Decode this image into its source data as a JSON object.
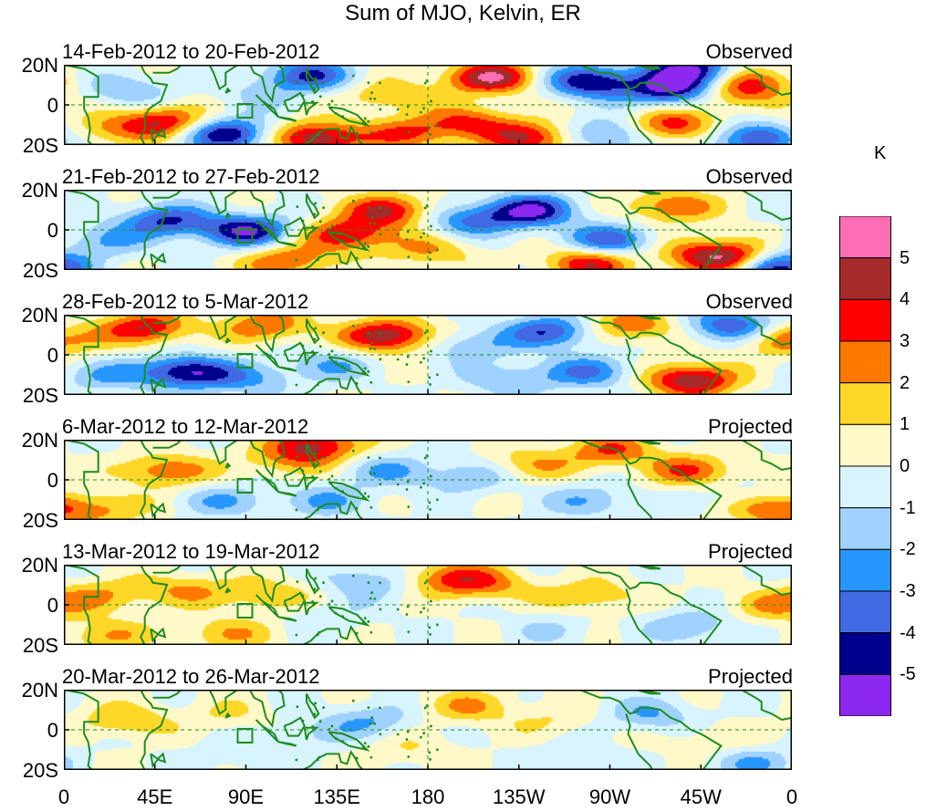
{
  "title": "Sum of MJO, Kelvin, ER",
  "panels": [
    {
      "date_range": "14-Feb-2012 to 20-Feb-2012",
      "status": "Observed"
    },
    {
      "date_range": "21-Feb-2012 to 27-Feb-2012",
      "status": "Observed"
    },
    {
      "date_range": "28-Feb-2012 to 5-Mar-2012",
      "status": "Observed"
    },
    {
      "date_range": "6-Mar-2012 to 12-Mar-2012",
      "status": "Projected"
    },
    {
      "date_range": "13-Mar-2012 to 19-Mar-2012",
      "status": "Projected"
    },
    {
      "date_range": "20-Mar-2012 to 26-Mar-2012",
      "status": "Projected"
    }
  ],
  "lat_labels": [
    "20N",
    "0",
    "20S"
  ],
  "lon_labels": [
    "0",
    "45E",
    "90E",
    "135E",
    "180",
    "135W",
    "90W",
    "45W",
    "0"
  ],
  "colorbar": {
    "unit": "K",
    "labels": [
      "5",
      "4",
      "3",
      "2",
      "1",
      "0",
      "-1",
      "-2",
      "-3",
      "-4",
      "-5"
    ],
    "colors": [
      "#ff6eb4",
      "#a52a2a",
      "#ff0000",
      "#ff7800",
      "#ffd728",
      "#fff8c8",
      "#d8f4ff",
      "#a0d2ff",
      "#2896ff",
      "#4169e1",
      "#00008c",
      "#8c28f0"
    ]
  },
  "chart_data": {
    "type": "heatmap",
    "title": "Sum of MJO, Kelvin, ER",
    "variable_unit": "K",
    "levels": [
      -5,
      -4,
      -3,
      -2,
      -1,
      0,
      1,
      2,
      3,
      4,
      5
    ],
    "lon_range": [
      0,
      360
    ],
    "lat_range": [
      -20,
      20
    ],
    "panel_scale": [
      5,
      5,
      4.5,
      3,
      2.8,
      2.4
    ],
    "blobs": [
      [
        [
          210,
          14,
          5
        ],
        [
          310,
          18,
          -5
        ],
        [
          340,
          12,
          3
        ],
        [
          120,
          15,
          -4
        ],
        [
          260,
          12,
          -5
        ],
        [
          300,
          8,
          -5
        ],
        [
          330,
          5,
          2
        ],
        [
          200,
          -8,
          3
        ],
        [
          170,
          -14,
          3
        ],
        [
          125,
          -16,
          5
        ],
        [
          80,
          -14,
          -5
        ],
        [
          50,
          -8,
          4
        ],
        [
          20,
          -12,
          2
        ],
        [
          300,
          -10,
          4
        ],
        [
          340,
          -16,
          -4
        ],
        [
          230,
          -16,
          4
        ],
        [
          160,
          5,
          2
        ],
        [
          270,
          -14,
          -3
        ],
        [
          30,
          8,
          -2
        ],
        [
          95,
          5,
          -1
        ]
      ],
      [
        [
          90,
          0,
          -5
        ],
        [
          50,
          5,
          -4
        ],
        [
          160,
          10,
          4
        ],
        [
          140,
          -2,
          4
        ],
        [
          230,
          10,
          -5
        ],
        [
          270,
          -5,
          -4
        ],
        [
          300,
          12,
          3
        ],
        [
          330,
          -14,
          5
        ],
        [
          350,
          -18,
          -5
        ],
        [
          260,
          -16,
          4
        ],
        [
          200,
          5,
          -3
        ],
        [
          20,
          -5,
          -2
        ],
        [
          110,
          -15,
          3
        ],
        [
          310,
          -10,
          2
        ],
        [
          180,
          -10,
          2
        ]
      ],
      [
        [
          40,
          14,
          4
        ],
        [
          100,
          15,
          3
        ],
        [
          160,
          10,
          5
        ],
        [
          60,
          -8,
          -5
        ],
        [
          90,
          -12,
          -2
        ],
        [
          130,
          -5,
          -2
        ],
        [
          200,
          5,
          -2
        ],
        [
          240,
          12,
          -4
        ],
        [
          280,
          15,
          3
        ],
        [
          330,
          15,
          -4
        ],
        [
          355,
          8,
          3
        ],
        [
          310,
          -12,
          5
        ],
        [
          260,
          -8,
          -3
        ],
        [
          20,
          -10,
          -2
        ],
        [
          220,
          -12,
          -2
        ]
      ],
      [
        [
          50,
          5,
          3
        ],
        [
          110,
          10,
          2
        ],
        [
          125,
          18,
          4
        ],
        [
          160,
          5,
          -2
        ],
        [
          200,
          2,
          -2
        ],
        [
          230,
          8,
          2
        ],
        [
          270,
          15,
          3
        ],
        [
          310,
          5,
          3
        ],
        [
          80,
          -10,
          -2
        ],
        [
          130,
          -10,
          -2
        ],
        [
          20,
          -14,
          2
        ],
        [
          350,
          -14,
          3
        ],
        [
          260,
          -10,
          -2
        ],
        [
          330,
          -8,
          -1
        ]
      ],
      [
        [
          20,
          5,
          2
        ],
        [
          60,
          8,
          2
        ],
        [
          100,
          5,
          2
        ],
        [
          150,
          12,
          -2
        ],
        [
          190,
          14,
          3
        ],
        [
          210,
          10,
          2
        ],
        [
          80,
          -14,
          2
        ],
        [
          130,
          -5,
          -1
        ],
        [
          260,
          5,
          2
        ],
        [
          310,
          -10,
          -2
        ],
        [
          350,
          0,
          2
        ],
        [
          240,
          -12,
          -1
        ],
        [
          20,
          -15,
          2
        ]
      ],
      [
        [
          30,
          5,
          2
        ],
        [
          80,
          8,
          1
        ],
        [
          150,
          5,
          -2
        ],
        [
          200,
          12,
          2
        ],
        [
          240,
          5,
          1
        ],
        [
          290,
          8,
          -2
        ],
        [
          320,
          -5,
          1
        ],
        [
          90,
          -12,
          -1
        ],
        [
          170,
          -10,
          1
        ],
        [
          250,
          -14,
          -1
        ],
        [
          340,
          -16,
          -2
        ],
        [
          120,
          -2,
          -1
        ]
      ]
    ]
  }
}
